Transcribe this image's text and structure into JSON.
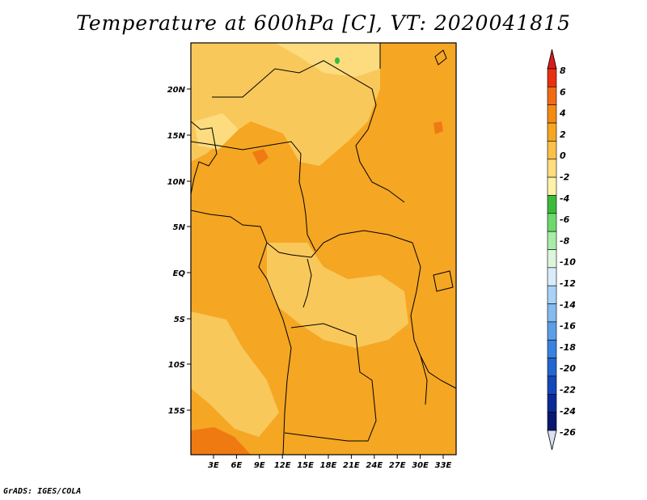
{
  "title": "Temperature at 600hPa [C], VT: 2020041815",
  "credit": "GrADS: IGES/COLA",
  "map": {
    "lat_ticks": [
      "20N",
      "15N",
      "10N",
      "5N",
      "EQ",
      "5S",
      "10S",
      "15S"
    ],
    "lon_ticks": [
      "3E",
      "6E",
      "9E",
      "12E",
      "15E",
      "18E",
      "21E",
      "24E",
      "27E",
      "30E",
      "33E"
    ],
    "fill_colors": {
      "warm_light": "#f9c85a",
      "warm_main": "#f5a623",
      "warm_dark": "#f07a12",
      "pale_yellow": "#fcdc7e",
      "green": "#33bb44"
    }
  },
  "colorbar": {
    "labels": [
      "8",
      "6",
      "4",
      "2",
      "0",
      "-2",
      "-4",
      "-6",
      "-8",
      "-10",
      "-12",
      "-14",
      "-16",
      "-18",
      "-20",
      "-22",
      "-24",
      "-26"
    ],
    "top_color": "#d81c1c",
    "bottom_color": "#dde0ee",
    "colors": [
      "#e8300e",
      "#f06a14",
      "#f58a12",
      "#f5a623",
      "#f9c04a",
      "#fcdc7e",
      "#fdf2a8",
      "#3cba3c",
      "#6ed86e",
      "#a8eca8",
      "#dcf6dc",
      "#d8ecfa",
      "#a8d2f6",
      "#86baf0",
      "#5e9ee8",
      "#3a82e0",
      "#2466d0",
      "#1448b8",
      "#0a2a96",
      "#061870"
    ]
  }
}
